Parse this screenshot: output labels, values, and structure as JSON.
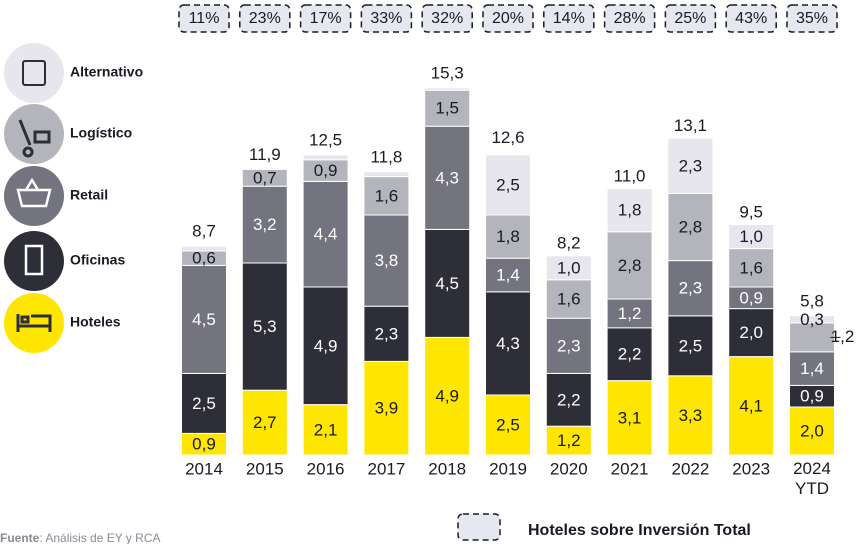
{
  "chart_data": {
    "type": "bar",
    "stacked": true,
    "categories": [
      "2014",
      "2015",
      "2016",
      "2017",
      "2018",
      "2019",
      "2020",
      "2021",
      "2022",
      "2023",
      "2024 YTD"
    ],
    "series": [
      {
        "name": "Hoteles",
        "color": "#ffe600",
        "values": [
          0.9,
          2.7,
          2.1,
          3.9,
          4.9,
          2.5,
          1.2,
          3.1,
          3.3,
          4.1,
          2.0
        ],
        "value_labels": [
          "0,9",
          "2,7",
          "2,1",
          "3,9",
          "4,9",
          "2,5",
          "1,2",
          "3,1",
          "3,3",
          "4,1",
          "2,0"
        ]
      },
      {
        "name": "Oficinas",
        "color": "#2e2e38",
        "values": [
          2.5,
          5.3,
          4.9,
          2.3,
          4.5,
          4.3,
          2.2,
          2.2,
          2.5,
          2.0,
          0.9
        ],
        "value_labels": [
          "2,5",
          "5,3",
          "4,9",
          "2,3",
          "4,5",
          "4,3",
          "2,2",
          "2,2",
          "2,5",
          "2,0",
          "0,9"
        ]
      },
      {
        "name": "Retail",
        "color": "#747480",
        "values": [
          4.5,
          3.2,
          4.4,
          3.8,
          4.3,
          1.4,
          2.3,
          1.2,
          2.3,
          0.9,
          1.4
        ],
        "value_labels": [
          "4,5",
          "3,2",
          "4,4",
          "3,8",
          "4,3",
          "1,4",
          "2,3",
          "1,2",
          "2,3",
          "0,9",
          "1,4"
        ]
      },
      {
        "name": "Logístico",
        "color": "#b4b4bc",
        "values": [
          0.6,
          0.7,
          0.9,
          1.6,
          1.5,
          1.8,
          1.6,
          2.8,
          2.8,
          1.6,
          1.2
        ],
        "value_labels": [
          "0,6",
          "0,7",
          "0,9",
          "1,6",
          "1,5",
          "1,8",
          "1,6",
          "2,8",
          "2,8",
          "1,6",
          "1,2"
        ]
      },
      {
        "name": "Alternativo",
        "color": "#e6e6ec",
        "values": [
          0.2,
          0,
          0.2,
          0.2,
          0.1,
          2.5,
          1.0,
          1.8,
          2.3,
          1.0,
          0.3
        ],
        "value_labels": [
          null,
          null,
          null,
          null,
          null,
          "2,5",
          "1,0",
          "1,8",
          "2,3",
          "1,0",
          "0,3"
        ]
      }
    ],
    "totals": [
      8.7,
      11.9,
      12.5,
      11.8,
      15.3,
      12.6,
      8.2,
      11.0,
      13.1,
      9.5,
      5.8
    ],
    "total_labels": [
      "8,7",
      "11,9",
      "12,5",
      "11,8",
      "15,3",
      "12,6",
      "8,2",
      "11,0",
      "13,1",
      "9,5",
      "5,8"
    ],
    "hotel_share": [
      11,
      23,
      17,
      33,
      32,
      20,
      14,
      28,
      25,
      43,
      35
    ],
    "hotel_share_labels": [
      "11%",
      "23%",
      "17%",
      "33%",
      "32%",
      "20%",
      "14%",
      "28%",
      "25%",
      "43%",
      "35%"
    ],
    "hotel_share_legend": "Hoteles sobre Inversión Total",
    "ylim": [
      0,
      16
    ],
    "source_label": "Fuente",
    "source": ": Análisis de EY y RCA"
  }
}
